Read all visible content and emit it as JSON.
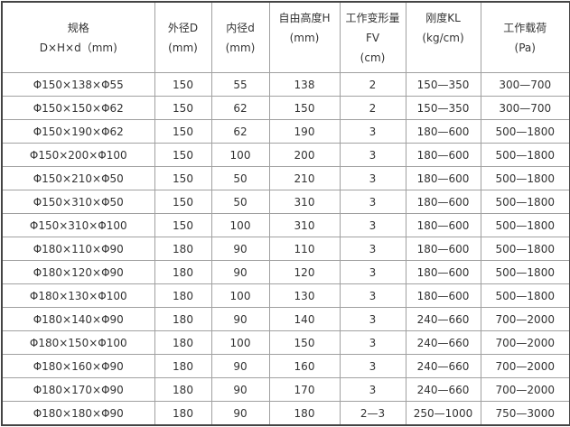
{
  "table": {
    "headers": [
      [
        "规格",
        "D×H×d（mm)"
      ],
      [
        "外径D",
        "(mm)"
      ],
      [
        "内径d",
        "(mm)"
      ],
      [
        "自由高度H",
        "(mm)",
        ""
      ],
      [
        "工作变形量",
        "FV",
        "(cm)"
      ],
      [
        "刚度KL",
        "(kg/cm)",
        ""
      ],
      [
        "工作载荷",
        "(Pa)"
      ]
    ],
    "rows": [
      [
        "Φ150×138×Φ55",
        "150",
        "55",
        "138",
        "2",
        "150—350",
        "300—700"
      ],
      [
        "Φ150×150×Φ62",
        "150",
        "62",
        "150",
        "2",
        "150—350",
        "300—700"
      ],
      [
        "Φ150×190×Φ62",
        "150",
        "62",
        "190",
        "3",
        "180—600",
        "500—1800"
      ],
      [
        "Φ150×200×Φ100",
        "150",
        "100",
        "200",
        "3",
        "180—600",
        "500—1800"
      ],
      [
        "Φ150×210×Φ50",
        "150",
        "50",
        "210",
        "3",
        "180—600",
        "500—1800"
      ],
      [
        "Φ150×310×Φ50",
        "150",
        "50",
        "310",
        "3",
        "180—600",
        "500—1800"
      ],
      [
        "Φ150×310×Φ100",
        "150",
        "100",
        "310",
        "3",
        "180—600",
        "500—1800"
      ],
      [
        "Φ180×110×Φ90",
        "180",
        "90",
        "110",
        "3",
        "180—600",
        "500—1800"
      ],
      [
        "Φ180×120×Φ90",
        "180",
        "90",
        "120",
        "3",
        "180—600",
        "500—1800"
      ],
      [
        "Φ180×130×Φ100",
        "180",
        "100",
        "130",
        "3",
        "180—600",
        "500—1800"
      ],
      [
        "Φ180×140×Φ90",
        "180",
        "90",
        "140",
        "3",
        "240—660",
        "700—2000"
      ],
      [
        "Φ180×150×Φ100",
        "180",
        "100",
        "150",
        "3",
        "240—660",
        "700—2000"
      ],
      [
        "Φ180×160×Φ90",
        "180",
        "90",
        "160",
        "3",
        "240—660",
        "700—2000"
      ],
      [
        "Φ180×170×Φ90",
        "180",
        "90",
        "170",
        "3",
        "240—660",
        "700—2000"
      ],
      [
        "Φ180×180×Φ90",
        "180",
        "90",
        "180",
        "2—3",
        "250—1000",
        "750—3000"
      ]
    ]
  }
}
